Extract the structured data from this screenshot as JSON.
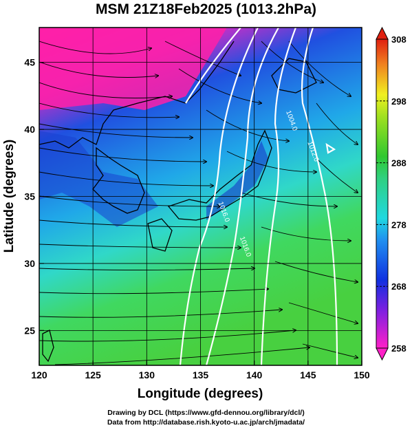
{
  "title": "MSM 21Z18Feb2025 (1013.2hPa)",
  "axes": {
    "xlabel": "Longitude (degrees)",
    "ylabel": "Latitude  (degrees)",
    "xticks": [
      "120",
      "125",
      "130",
      "135",
      "140",
      "145",
      "150"
    ],
    "yticks": [
      "25",
      "30",
      "35",
      "40",
      "45"
    ],
    "xrange": [
      120,
      150
    ],
    "yrange": [
      22.4,
      47.6
    ]
  },
  "colorbar": {
    "ticks": [
      "258",
      "268",
      "278",
      "288",
      "298",
      "308"
    ],
    "range": [
      258,
      308
    ]
  },
  "contours": [
    {
      "label": "1004.0",
      "lon": 143.3,
      "lat": 40.6
    },
    {
      "label": "1012.0",
      "lon": 145.3,
      "lat": 38.3
    },
    {
      "label": "1016.0",
      "lon": 137.0,
      "lat": 33.8
    },
    {
      "label": "1016.0",
      "lon": 139.0,
      "lat": 31.2
    }
  ],
  "credits": {
    "line1": "Drawing by DCL (https://www.gfd-dennou.org/library/dcl/)",
    "line2": "Data from http://database.rish.kyoto-u.ac.jp/arch/jmadata/"
  },
  "colors": {
    "cold": "#ff1aa0",
    "mid_cold": "#1c4fd8",
    "mid": "#25d2e0",
    "warm": "#38c838",
    "contour": "#ffffff"
  }
}
